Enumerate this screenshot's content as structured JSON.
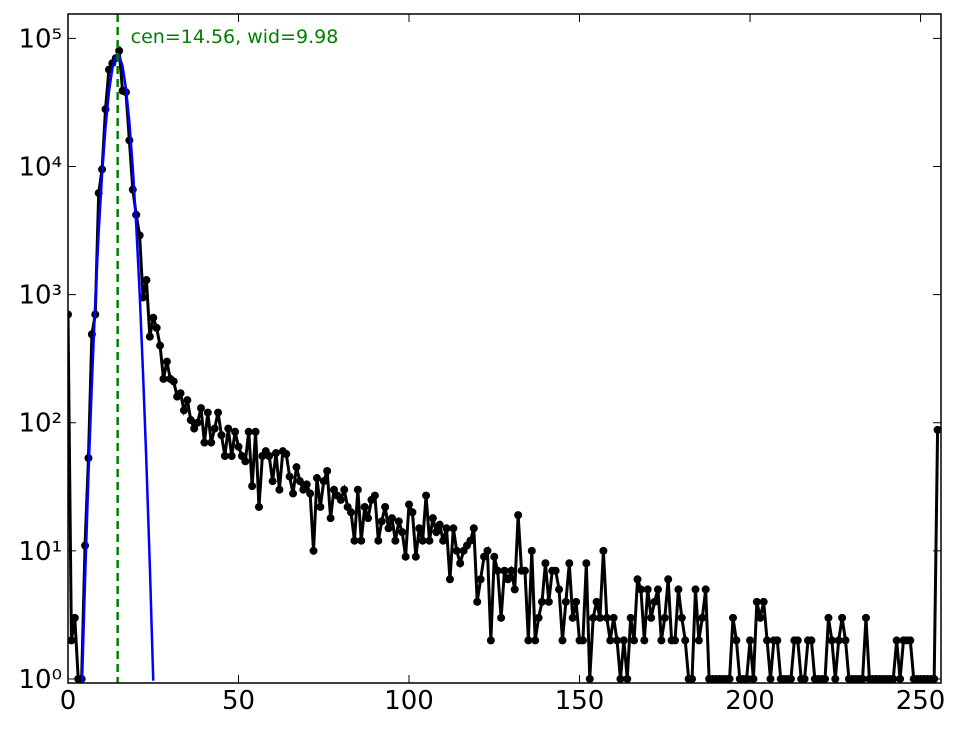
{
  "chart_data": {
    "type": "line",
    "log_y": true,
    "annotation": {
      "text": "cen=14.56, wid=9.98",
      "x": 14.56,
      "color": "#008000"
    },
    "xlim": [
      0,
      256
    ],
    "xticks": [
      0,
      50,
      100,
      150,
      200,
      250
    ],
    "ylim": [
      0.93,
      155000
    ],
    "yticks": [
      {
        "value": 1,
        "label": "10⁰"
      },
      {
        "value": 10,
        "label": "10¹"
      },
      {
        "value": 100,
        "label": "10²"
      },
      {
        "value": 1000,
        "label": "10³"
      },
      {
        "value": 10000,
        "label": "10⁴"
      },
      {
        "value": 100000,
        "label": "10⁵"
      }
    ],
    "series": [
      {
        "color": "#000000",
        "markers": true,
        "x": [
          0,
          1,
          2,
          3,
          4,
          5,
          6,
          7,
          8,
          9,
          10,
          11,
          12,
          13,
          14,
          15,
          16,
          17,
          18,
          19,
          20,
          21,
          22,
          23,
          24,
          25,
          26,
          27,
          28,
          29,
          30,
          31,
          32,
          33,
          34,
          35,
          36,
          37,
          38,
          39,
          40,
          41,
          42,
          43,
          44,
          45,
          46,
          47,
          48,
          49,
          50,
          51,
          52,
          53,
          54,
          55,
          56,
          57,
          58,
          59,
          60,
          61,
          62,
          63,
          64,
          65,
          66,
          67,
          68,
          69,
          70,
          71,
          72,
          73,
          74,
          75,
          76,
          77,
          78,
          79,
          80,
          81,
          82,
          83,
          84,
          85,
          86,
          87,
          88,
          89,
          90,
          91,
          92,
          93,
          94,
          95,
          96,
          97,
          98,
          99,
          100,
          101,
          102,
          103,
          104,
          105,
          106,
          107,
          108,
          109,
          110,
          111,
          112,
          113,
          114,
          115,
          116,
          117,
          118,
          119,
          120,
          121,
          122,
          123,
          124,
          125,
          126,
          127,
          128,
          129,
          130,
          131,
          132,
          133,
          134,
          135,
          136,
          137,
          138,
          139,
          140,
          141,
          142,
          143,
          144,
          145,
          146,
          147,
          148,
          149,
          150,
          151,
          152,
          153,
          154,
          155,
          156,
          157,
          158,
          159,
          160,
          161,
          162,
          163,
          164,
          165,
          166,
          167,
          168,
          169,
          170,
          171,
          172,
          173,
          174,
          175,
          176,
          177,
          178,
          179,
          180,
          181,
          182,
          183,
          184,
          185,
          186,
          187,
          188,
          189,
          190,
          191,
          192,
          193,
          194,
          195,
          196,
          197,
          198,
          199,
          200,
          201,
          202,
          203,
          204,
          205,
          206,
          207,
          208,
          209,
          210,
          211,
          212,
          213,
          214,
          215,
          216,
          217,
          218,
          219,
          220,
          221,
          222,
          223,
          224,
          225,
          226,
          227,
          228,
          229,
          230,
          231,
          232,
          233,
          234,
          235,
          236,
          237,
          238,
          239,
          240,
          241,
          242,
          243,
          244,
          245,
          246,
          247,
          248,
          249,
          250,
          251,
          252,
          253,
          254,
          255
        ],
        "values": [
          700,
          2,
          3,
          1,
          1,
          11,
          53,
          490,
          700,
          6200,
          9500,
          28000,
          57000,
          64000,
          70000,
          80000,
          39000,
          38000,
          16000,
          6600,
          4200,
          2900,
          950,
          1300,
          470,
          660,
          550,
          400,
          220,
          300,
          220,
          210,
          160,
          170,
          125,
          150,
          105,
          90,
          100,
          130,
          70,
          120,
          70,
          90,
          120,
          80,
          55,
          90,
          55,
          85,
          65,
          55,
          50,
          85,
          32,
          85,
          22,
          55,
          60,
          55,
          35,
          58,
          30,
          60,
          57,
          38,
          28,
          45,
          35,
          30,
          33,
          28,
          10,
          37,
          22,
          35,
          42,
          18,
          30,
          27,
          25,
          30,
          22,
          20,
          12,
          30,
          12,
          22,
          18,
          25,
          27,
          12,
          17,
          22,
          15,
          18,
          12,
          17,
          14,
          9,
          23,
          20,
          9,
          15,
          12,
          27,
          12,
          18,
          14,
          16,
          12,
          15,
          6,
          15,
          10,
          8,
          10,
          11,
          12,
          15,
          4,
          6,
          9,
          10,
          2,
          9,
          7,
          3,
          7,
          6,
          7,
          5,
          19,
          7,
          7,
          2,
          10,
          2,
          3,
          4,
          8,
          4,
          7,
          7,
          5,
          2,
          4,
          8,
          3,
          4,
          2,
          2,
          8,
          1,
          3,
          4,
          3,
          10,
          3,
          2,
          3,
          2,
          1,
          2,
          1,
          3,
          2,
          6,
          5,
          2,
          5,
          3,
          4,
          5,
          2,
          3,
          6,
          2,
          2,
          5,
          3,
          2,
          1,
          1,
          5,
          2,
          3,
          5,
          1,
          1,
          1,
          1,
          1,
          1,
          1,
          3,
          2,
          1,
          1,
          1,
          2,
          1,
          4,
          3,
          4,
          2,
          1,
          2,
          2,
          1,
          1,
          1,
          1,
          2,
          2,
          1,
          1,
          2,
          2,
          1,
          1,
          1,
          1,
          3,
          2,
          1,
          2,
          3,
          2,
          1,
          1,
          1,
          1,
          1,
          3,
          1,
          1,
          1,
          1,
          1,
          1,
          1,
          1,
          2,
          1,
          2,
          2,
          2,
          1,
          1,
          1,
          1,
          1,
          1,
          1,
          88
        ]
      },
      {
        "color": "#0000ff",
        "markers": false,
        "x": [
          4,
          5,
          6,
          7,
          8,
          9,
          10,
          11,
          12,
          13,
          14,
          15,
          16,
          17,
          18,
          19,
          20,
          21,
          22,
          23,
          24,
          25
        ],
        "values": [
          0.74,
          5.9,
          39,
          203,
          876,
          3090,
          8760,
          20200,
          38100,
          58300,
          72600,
          73500,
          60500,
          40600,
          22100,
          9760,
          3510,
          1040,
          246,
          48,
          7.6,
          0.97
        ]
      }
    ]
  }
}
